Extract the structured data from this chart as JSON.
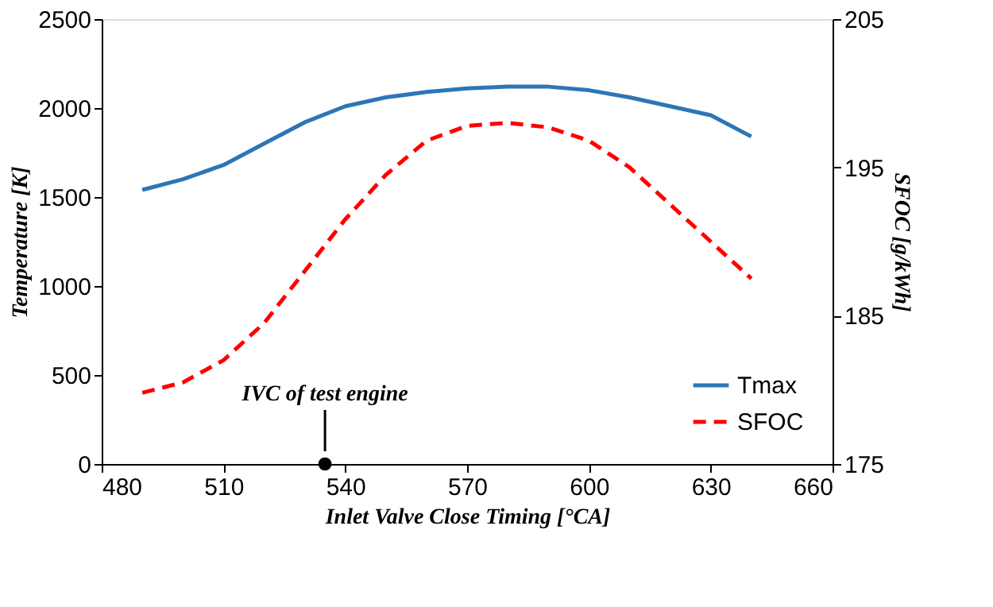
{
  "chart_data": {
    "type": "line",
    "xlabel": "Inlet Valve Close Timing [°CA]",
    "ylabel": "Temperature  [K]",
    "y2label": "SFOC  [g/kWh]",
    "x": [
      490,
      500,
      510,
      520,
      530,
      540,
      550,
      560,
      570,
      580,
      590,
      600,
      610,
      620,
      630,
      640
    ],
    "series": [
      {
        "name": "Tmax",
        "color": "#2e75b6",
        "line_style": "solid",
        "values": [
          1540,
          1600,
          1680,
          1800,
          1920,
          2010,
          2060,
          2090,
          2110,
          2120,
          2120,
          2100,
          2060,
          2010,
          1960,
          1840
        ]
      },
      {
        "name": "SFOC",
        "color": "#ff0000",
        "line_style": "dashed",
        "axis": "y2",
        "values": [
          179.8,
          180.5,
          182,
          184.5,
          188,
          191.5,
          194.5,
          196.8,
          197.8,
          198,
          197.7,
          196.8,
          195,
          192.5,
          190,
          187.5
        ]
      }
    ],
    "xlim": [
      480,
      660
    ],
    "xticks": [
      480,
      510,
      540,
      570,
      600,
      630,
      660
    ],
    "ylim": [
      0,
      2500
    ],
    "yticks": [
      0,
      500,
      1000,
      1500,
      2000,
      2500
    ],
    "y2lim": [
      175,
      205
    ],
    "y2ticks": [
      175,
      185,
      195,
      205
    ],
    "annotations": [
      {
        "text": "IVC  of  test engine",
        "x": 535,
        "y": 0
      }
    ],
    "grid": false,
    "legend": "bottom right",
    "marker": "none"
  }
}
